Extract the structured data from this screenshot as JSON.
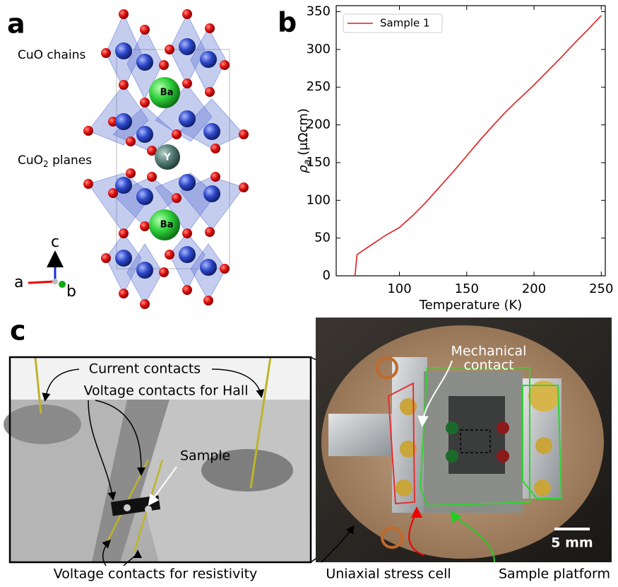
{
  "panel_a": {
    "label": "a",
    "chains": "CuO chains",
    "planes_main": "CuO",
    "planes_sub": "2",
    "planes_rest": " planes",
    "atoms": [
      "Ba",
      "Y",
      "Ba"
    ],
    "axis_c": "c",
    "axis_a": "a",
    "axis_b": "b"
  },
  "chart_data": {
    "type": "line",
    "panel_label": "b",
    "x_label": "Temperature (K)",
    "y_label": {
      "symbol": "ρ",
      "sub": "a",
      "unit": " (μΩcm)"
    },
    "xlim": [
      53,
      253
    ],
    "ylim": [
      0,
      358
    ],
    "xticks": [
      100,
      150,
      200,
      250
    ],
    "yticks": [
      0,
      50,
      100,
      150,
      200,
      250,
      300,
      350
    ],
    "grid": false,
    "legend": "upper left",
    "x": [
      67,
      68,
      68.5,
      70,
      75,
      80,
      90,
      100,
      110,
      120,
      130,
      140,
      150,
      160,
      170,
      180,
      190,
      200,
      210,
      220,
      230,
      240,
      250
    ],
    "series": [
      {
        "name": "Sample 1",
        "color": "#e41a1c",
        "values": [
          0,
          20,
          28,
          30,
          36,
          42,
          54,
          64,
          80,
          98,
          118,
          138,
          159,
          180,
          200,
          219,
          236,
          253,
          271,
          289,
          308,
          326,
          345
        ]
      }
    ]
  },
  "panel_c": {
    "label": "c",
    "current": "Current contacts",
    "hall": "Voltage contacts for Hall",
    "sample": "Sample",
    "resistivity": "Voltage contacts for resistivity",
    "mechanical": [
      "Mechanical",
      "contact"
    ],
    "stress_cell": "Uniaxial stress cell",
    "platform": "Sample platform",
    "scale": "5 mm"
  }
}
